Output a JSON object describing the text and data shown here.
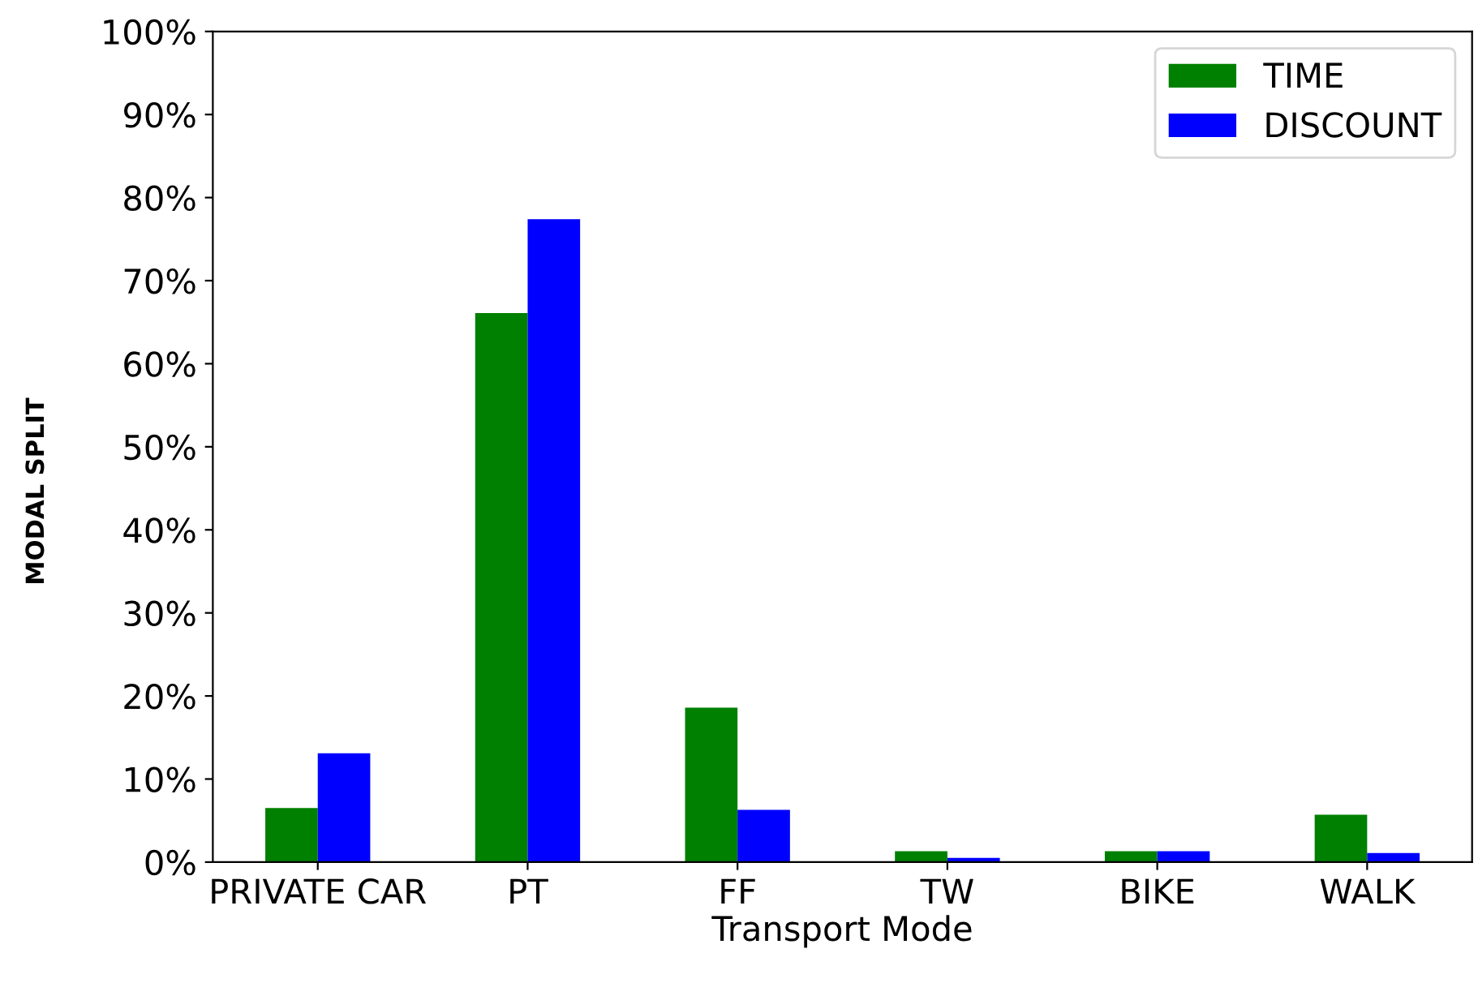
{
  "chart_data": {
    "type": "bar",
    "xlabel": "Transport Mode",
    "ylabel": "MODAL SPLIT",
    "categories": [
      "PRIVATE CAR",
      "PT",
      "FF",
      "TW",
      "BIKE",
      "WALK"
    ],
    "series": [
      {
        "name": "TIME",
        "color": "#008000",
        "values": [
          6.5,
          66.1,
          18.6,
          1.3,
          1.3,
          5.7
        ]
      },
      {
        "name": "DISCOUNT",
        "color": "#0000ff",
        "values": [
          13.1,
          77.4,
          6.3,
          0.5,
          1.3,
          1.1
        ]
      }
    ],
    "ylim": [
      0,
      100
    ],
    "yticks": [
      {
        "value": 0,
        "label": "0%"
      },
      {
        "value": 10,
        "label": "10%"
      },
      {
        "value": 20,
        "label": "20%"
      },
      {
        "value": 30,
        "label": "30%"
      },
      {
        "value": 40,
        "label": "40%"
      },
      {
        "value": 50,
        "label": "50%"
      },
      {
        "value": 60,
        "label": "60%"
      },
      {
        "value": 70,
        "label": "70%"
      },
      {
        "value": 80,
        "label": "80%"
      },
      {
        "value": 90,
        "label": "90%"
      },
      {
        "value": 100,
        "label": "100%"
      }
    ],
    "grid": false,
    "legend": "top right"
  }
}
